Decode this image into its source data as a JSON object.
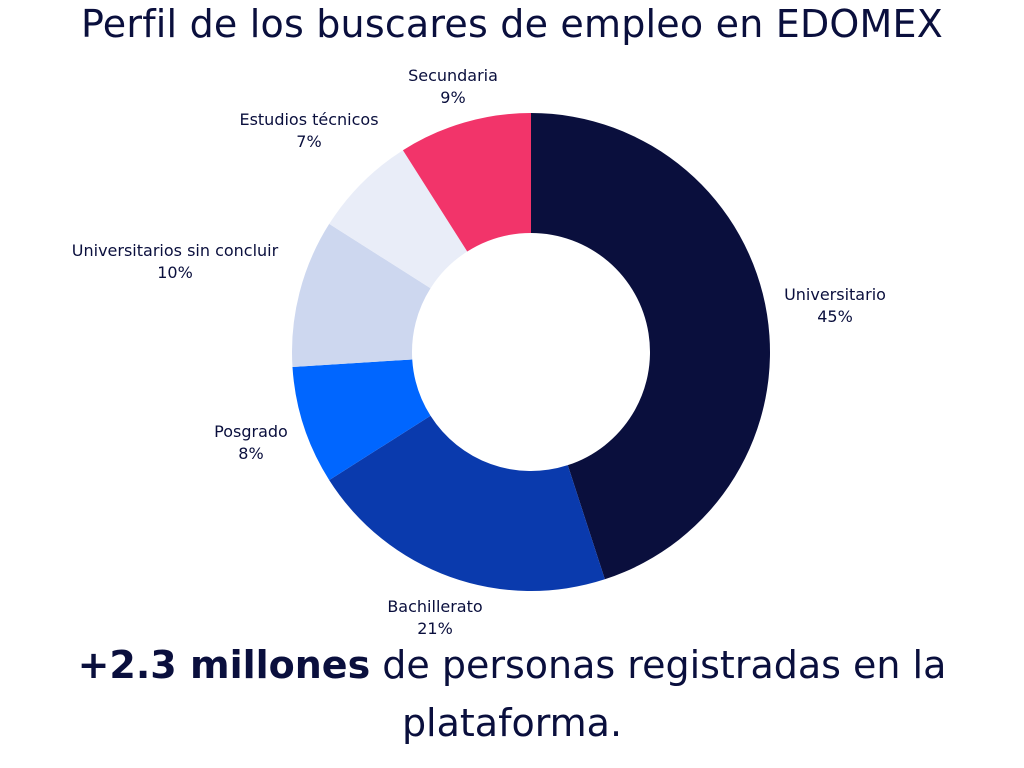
{
  "title": "Perfil de los buscares de empleo en EDOMEX",
  "footer": {
    "bold": "+2.3 millones",
    "line1_rest": " de personas registradas en la",
    "line2": "plataforma."
  },
  "chart_data": {
    "type": "pie",
    "donut": true,
    "title": "Perfil de los buscares de empleo en EDOMEX",
    "slices": [
      {
        "label": "Universitario",
        "value": 45,
        "value_label": "45%",
        "color": "#0a0f3d"
      },
      {
        "label": "Bachillerato",
        "value": 21,
        "value_label": "21%",
        "color": "#0a3aad"
      },
      {
        "label": "Posgrado",
        "value": 8,
        "value_label": "8%",
        "color": "#0066ff"
      },
      {
        "label": "Universitarios sin concluir",
        "value": 10,
        "value_label": "10%",
        "color": "#cdd7ef"
      },
      {
        "label": "Estudios técnicos",
        "value": 7,
        "value_label": "7%",
        "color": "#e9edf8"
      },
      {
        "label": "Secundaria",
        "value": 9,
        "value_label": "9%",
        "color": "#f2346a"
      }
    ]
  }
}
